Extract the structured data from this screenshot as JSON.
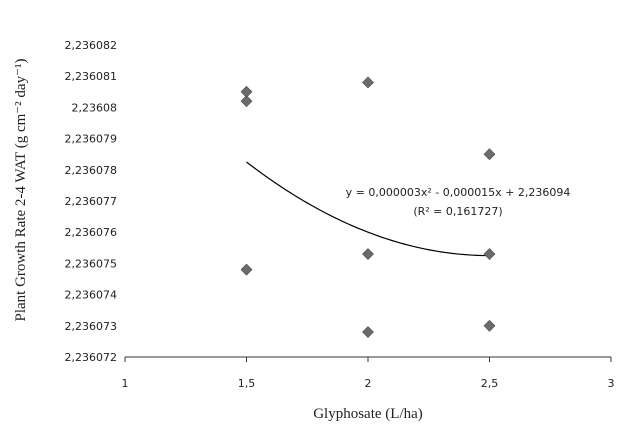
{
  "chart_data": {
    "type": "scatter",
    "xlabel": "Glyphosate (L/ha)",
    "ylabel": "Plant Growth Rate 2-4 WAT (g cm⁻² day⁻¹)",
    "xlim": [
      1,
      3
    ],
    "ylim": [
      2.236072,
      2.236082
    ],
    "x_ticks": [
      1,
      1.5,
      2,
      2.5,
      3
    ],
    "x_tick_labels": [
      "1",
      "1,5",
      "2",
      "2,5",
      "3"
    ],
    "y_ticks": [
      2.236072,
      2.236073,
      2.236074,
      2.236075,
      2.236076,
      2.236077,
      2.236078,
      2.236079,
      2.23608,
      2.236081,
      2.236082
    ],
    "y_tick_labels": [
      "2,236072",
      "2,236073",
      "2,236074",
      "2,236075",
      "2,236076",
      "2,236077",
      "2,236078",
      "2,236079",
      "2,23608",
      "2,236081",
      "2,236082"
    ],
    "grid": false,
    "legend": "none",
    "marker": "diamond",
    "marker_color": "#6b6b6b",
    "trendline_color": "#000000",
    "points": [
      {
        "x": 1.5,
        "y": 2.2360805
      },
      {
        "x": 1.5,
        "y": 2.2360802
      },
      {
        "x": 1.5,
        "y": 2.2360748
      },
      {
        "x": 2,
        "y": 2.2360808
      },
      {
        "x": 2,
        "y": 2.2360753
      },
      {
        "x": 2,
        "y": 2.2360728
      },
      {
        "x": 2.5,
        "y": 2.2360785
      },
      {
        "x": 2.5,
        "y": 2.2360753
      },
      {
        "x": 2.5,
        "y": 2.236073
      }
    ],
    "trendline": {
      "type": "polynomial",
      "coefficients": [
        3e-06,
        -1.5e-05,
        2.236094
      ],
      "x_range": [
        1.5,
        2.5
      ],
      "equation_text": "y = 0,000003x² - 0,000015x + 2,236094",
      "r2_text": "(R² = 0,161727)"
    }
  }
}
